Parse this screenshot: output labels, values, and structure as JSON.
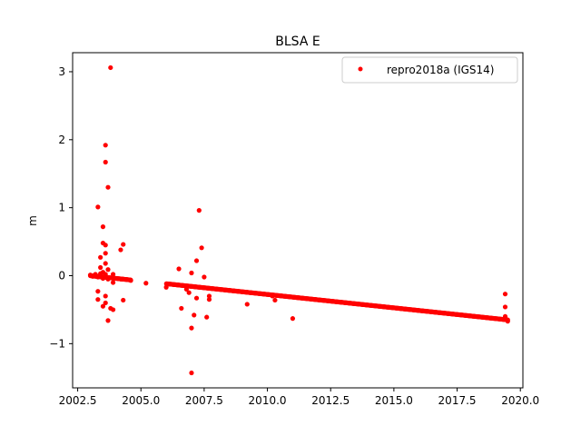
{
  "chart_data": {
    "type": "scatter",
    "title": "BLSA E",
    "xlabel": "",
    "ylabel": "m",
    "xlim": [
      2002.3,
      2020.1
    ],
    "ylim": [
      -1.65,
      3.28
    ],
    "xticks": [
      2002.5,
      2005.0,
      2007.5,
      2010.0,
      2012.5,
      2015.0,
      2017.5,
      2020.0
    ],
    "xtick_labels": [
      "2002.5",
      "2005.0",
      "2007.5",
      "2010.0",
      "2012.5",
      "2015.0",
      "2017.5",
      "2020.0"
    ],
    "yticks": [
      -1,
      0,
      1,
      2,
      3
    ],
    "ytick_labels": [
      "−1",
      "0",
      "1",
      "2",
      "3"
    ],
    "grid": false,
    "legend": {
      "placement": "top-right",
      "entries": [
        "repro2018a (IGS14)"
      ]
    },
    "series": [
      {
        "name": "repro2018a (IGS14)",
        "color": "#ff0000",
        "marker": "circle",
        "trend": {
          "x_start": 2003.0,
          "x_end": 2019.5,
          "y_start": 0.0,
          "y_end": -0.65
        },
        "points": [
          [
            2003.0,
            0.01
          ],
          [
            2003.1,
            -0.01
          ],
          [
            2003.2,
            0.02
          ],
          [
            2003.3,
            -0.02
          ],
          [
            2003.4,
            0.03
          ],
          [
            2003.5,
            -0.04
          ],
          [
            2003.6,
            0.02
          ],
          [
            2003.7,
            -0.05
          ],
          [
            2003.3,
            1.01
          ],
          [
            2003.5,
            0.72
          ],
          [
            2003.5,
            0.48
          ],
          [
            2003.6,
            0.45
          ],
          [
            2003.6,
            1.67
          ],
          [
            2003.6,
            1.92
          ],
          [
            2003.7,
            1.3
          ],
          [
            2003.8,
            3.06
          ],
          [
            2003.4,
            0.27
          ],
          [
            2003.4,
            0.12
          ],
          [
            2003.5,
            0.05
          ],
          [
            2003.6,
            0.33
          ],
          [
            2003.6,
            0.18
          ],
          [
            2003.7,
            0.09
          ],
          [
            2003.3,
            -0.35
          ],
          [
            2003.3,
            -0.23
          ],
          [
            2003.5,
            -0.45
          ],
          [
            2003.6,
            -0.3
          ],
          [
            2003.6,
            -0.4
          ],
          [
            2003.7,
            -0.66
          ],
          [
            2003.8,
            -0.48
          ],
          [
            2003.9,
            -0.5
          ],
          [
            2003.9,
            0.02
          ],
          [
            2003.9,
            -0.1
          ],
          [
            2004.2,
            0.38
          ],
          [
            2004.3,
            0.46
          ],
          [
            2004.3,
            -0.36
          ],
          [
            2004.2,
            -0.05
          ],
          [
            2006.5,
            0.1
          ],
          [
            2006.6,
            -0.48
          ],
          [
            2006.8,
            -0.2
          ],
          [
            2007.0,
            -0.77
          ],
          [
            2007.0,
            -1.43
          ],
          [
            2007.0,
            0.04
          ],
          [
            2007.1,
            -0.58
          ],
          [
            2007.2,
            0.22
          ],
          [
            2007.2,
            -0.33
          ],
          [
            2007.3,
            0.96
          ],
          [
            2007.4,
            0.41
          ],
          [
            2007.5,
            -0.02
          ],
          [
            2007.6,
            -0.61
          ],
          [
            2007.7,
            -0.35
          ],
          [
            2007.7,
            -0.3
          ],
          [
            2006.9,
            -0.25
          ],
          [
            2009.2,
            -0.42
          ],
          [
            2010.3,
            -0.36
          ],
          [
            2011.0,
            -0.63
          ],
          [
            2010.2,
            -0.3
          ],
          [
            2019.4,
            -0.27
          ],
          [
            2019.4,
            -0.46
          ],
          [
            2019.4,
            -0.6
          ],
          [
            2019.5,
            -0.67
          ],
          [
            2019.4,
            -0.63
          ],
          [
            2006.0,
            -0.17
          ],
          [
            2005.2,
            -0.11
          ],
          [
            2004.6,
            -0.07
          ]
        ]
      }
    ]
  }
}
